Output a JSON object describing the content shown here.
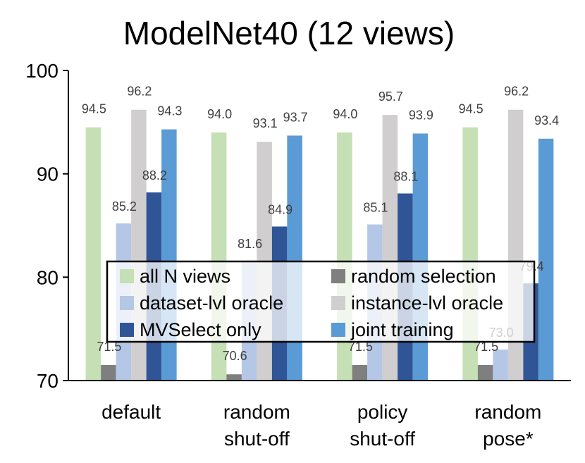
{
  "chart_data": {
    "type": "bar",
    "title": "ModelNet40 (12 views)",
    "xlabel": "",
    "ylabel": "",
    "ylim": [
      70,
      100
    ],
    "yticks": [
      70,
      80,
      90,
      100
    ],
    "categories": [
      [
        "default"
      ],
      [
        "random",
        "shut-off"
      ],
      [
        "policy",
        "shut-off"
      ],
      [
        "random",
        "pose*"
      ]
    ],
    "series": [
      {
        "name": "all N views",
        "color": "#c5e0b4",
        "values": [
          94.5,
          94.0,
          94.0,
          94.5
        ]
      },
      {
        "name": "random selection",
        "color": "#7f7f7f",
        "values": [
          71.5,
          70.6,
          71.5,
          71.5
        ]
      },
      {
        "name": "dataset-lvl oracle",
        "color": "#b4c7e7",
        "values": [
          85.2,
          81.6,
          85.1,
          73.0
        ]
      },
      {
        "name": "instance-lvl oracle",
        "color": "#d0cece",
        "values": [
          96.2,
          93.1,
          95.7,
          96.2
        ]
      },
      {
        "name": "MVSelect only",
        "color": "#2f5597",
        "values": [
          88.2,
          84.9,
          88.1,
          79.4
        ]
      },
      {
        "name": "joint training",
        "color": "#5b9bd5",
        "values": [
          94.3,
          93.7,
          93.9,
          93.4
        ]
      }
    ],
    "grid": false,
    "legend_position": "bottom-center inside plot"
  }
}
